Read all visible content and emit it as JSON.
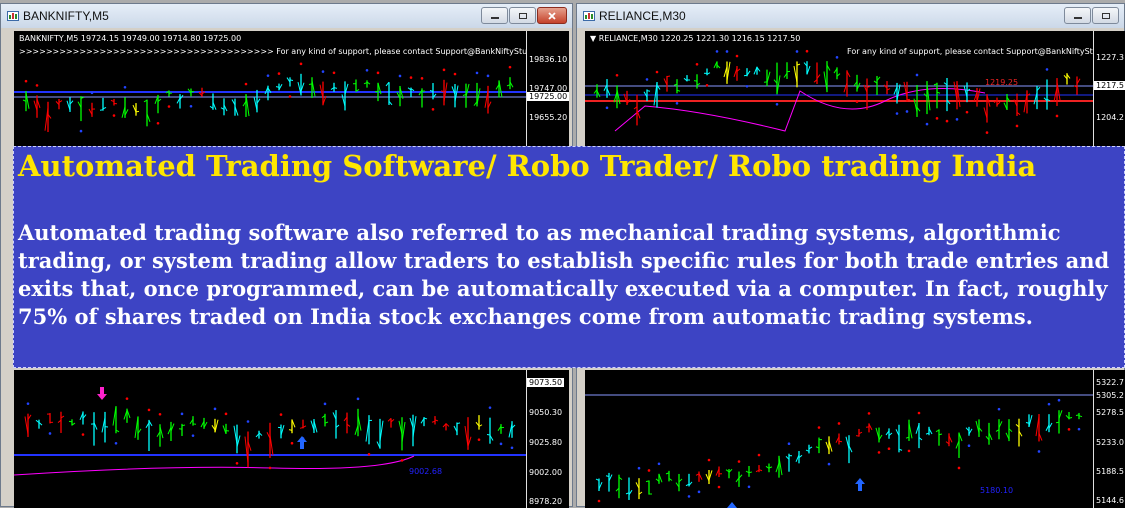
{
  "left_window": {
    "title": "BANKNIFTY,M5",
    "header": "BANKNIFTY,M5  19724.15 19749.00 19714.80 19725.00",
    "support": ">>>>>>>>>>>>>>>>>>>>>>>>>>>>>>>>>>>>>>  For any kind of support, please contact Support@BankNiftyStudio.co",
    "upper_prices": [
      "19836.10",
      "19747.00",
      "19725.00",
      "19655.20"
    ],
    "lower_prices": [
      "9073.50",
      "9050.30",
      "9025.80",
      "9002.00",
      "8978.20"
    ],
    "lower_tag": "9002.68"
  },
  "right_window": {
    "title": "RELIANCE,M30",
    "header": "▼ RELIANCE,M30  1220.25 1221.30 1216.15 1217.50",
    "support": "For any kind of support, please contact Support@BankNiftyStudio.c",
    "upper_prices": [
      "1227.3",
      "1217.5",
      "1204.2"
    ],
    "upper_tag": "1219.25",
    "lower_prices": [
      "5322.7",
      "5305.2",
      "5278.5",
      "5233.0",
      "5188.5",
      "5144.6"
    ],
    "lower_tag": "5180.10"
  },
  "overlay": {
    "title": "Automated Trading Software/ Robo Trader/ Robo trading India",
    "body": "Automated trading software also referred to as mechanical trading systems, algorithmic trading, or system trading allow traders to establish specific rules for both trade entries and exits that, once programmed, can be automatically executed via a computer. In fact, roughly 75% of shares traded on India stock exchanges come from automatic trading systems."
  },
  "colors": {
    "overlay_bg": "#3d44c4",
    "overlay_title": "#ffe600",
    "bull": "#00ff00",
    "bear": "#ff0000",
    "neutral": "#00ffff",
    "signal": "#ffff00",
    "ma": "#ff00ff"
  },
  "icons": {
    "window": "chart-window-icon",
    "minimize": "minimize-icon",
    "restore": "restore-icon",
    "close": "close-icon",
    "buy": "blue-up-arrow-icon",
    "sell": "magenta-down-arrow-icon"
  }
}
